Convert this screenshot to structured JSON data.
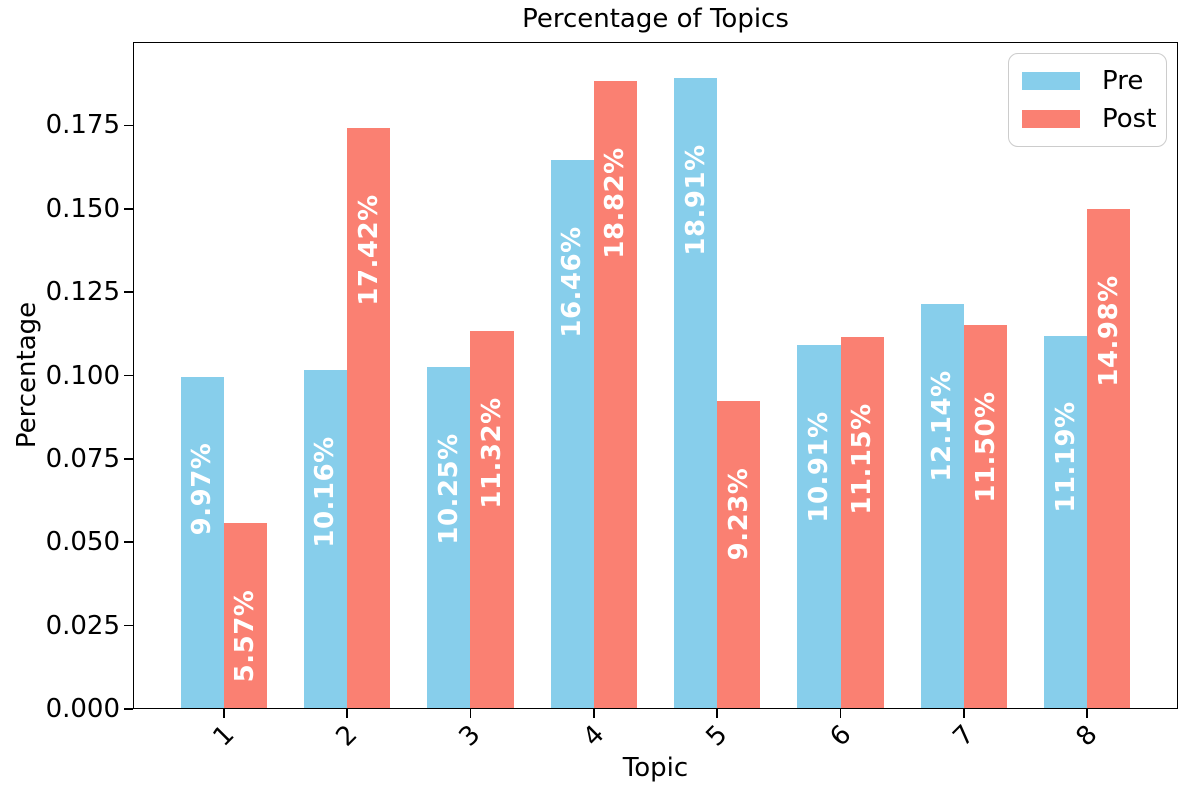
{
  "figure": {
    "background": "#ffffff"
  },
  "chart_data": {
    "type": "bar",
    "title": "Percentage of Topics",
    "xlabel": "Topic",
    "ylabel": "Percentage",
    "categories": [
      "1",
      "2",
      "3",
      "4",
      "5",
      "6",
      "7",
      "8"
    ],
    "series": [
      {
        "name": "Pre",
        "color": "#87CEEB",
        "values": [
          0.0997,
          0.1016,
          0.1025,
          0.1646,
          0.1891,
          0.1091,
          0.1214,
          0.1119
        ],
        "bar_labels": [
          "9.97%",
          "10.16%",
          "10.25%",
          "16.46%",
          "18.91%",
          "10.91%",
          "12.14%",
          "11.19%"
        ]
      },
      {
        "name": "Post",
        "color": "#FA8072",
        "values": [
          0.0557,
          0.1742,
          0.1132,
          0.1882,
          0.0923,
          0.1115,
          0.115,
          0.1498
        ],
        "bar_labels": [
          "5.57%",
          "17.42%",
          "11.32%",
          "18.82%",
          "9.23%",
          "11.15%",
          "11.50%",
          "14.98%"
        ]
      }
    ],
    "ylim": [
      0,
      0.2
    ],
    "yticks": [
      "0.000",
      "0.025",
      "0.050",
      "0.075",
      "0.100",
      "0.125",
      "0.150",
      "0.175"
    ],
    "xtick_rotation_deg": 45,
    "grid": false,
    "legend_position": "upper right",
    "bar_label_color": "#ffffff",
    "axis_color": "#000000",
    "legend_border_color": "#cccccc"
  }
}
